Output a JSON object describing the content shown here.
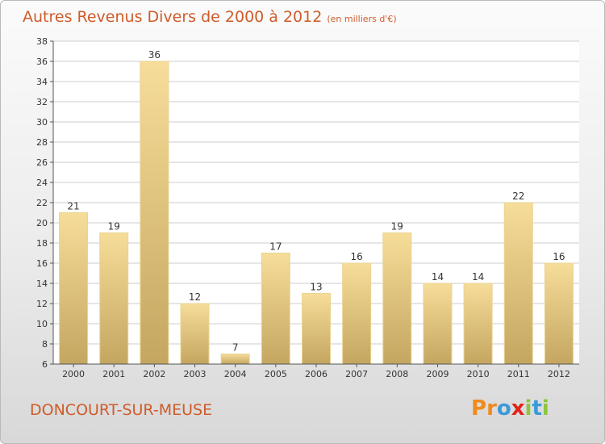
{
  "title": "Autres Revenus Divers de 2000 à 2012",
  "subtitle": "(en milliers d'€)",
  "location": "DONCOURT-SUR-MEUSE",
  "brand": {
    "letters": [
      "P",
      "r",
      "o",
      "x",
      "i",
      "t",
      "i"
    ],
    "colors": [
      "#f08a1c",
      "#f08a1c",
      "#3a9ad9",
      "#e2231a",
      "#8cc63e",
      "#3a9ad9",
      "#8cc63e"
    ]
  },
  "colors": {
    "title": "#cf5b2a",
    "bar_light": "#f6dd99",
    "bar_dark": "#c4a660",
    "axis": "#555555",
    "grid": "#cccccc"
  },
  "chart_data": {
    "type": "bar",
    "categories": [
      "2000",
      "2001",
      "2002",
      "2003",
      "2004",
      "2005",
      "2006",
      "2007",
      "2008",
      "2009",
      "2010",
      "2011",
      "2012"
    ],
    "values": [
      21,
      19,
      36,
      12,
      7,
      17,
      13,
      16,
      19,
      14,
      14,
      22,
      16
    ],
    "ylim": [
      6,
      38
    ],
    "yticks": [
      6,
      8,
      10,
      12,
      14,
      16,
      18,
      20,
      22,
      24,
      26,
      28,
      30,
      32,
      34,
      36,
      38
    ],
    "grid": true,
    "data_labels": true
  }
}
